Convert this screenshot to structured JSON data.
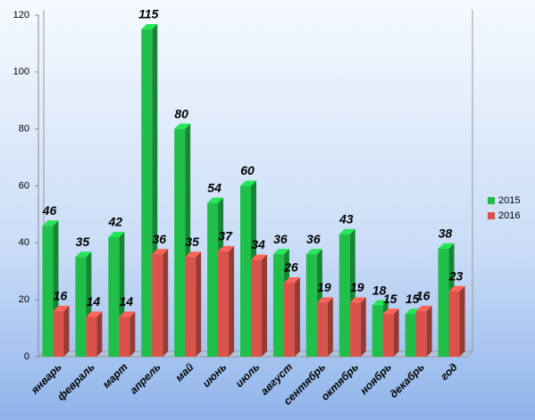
{
  "chart_data": {
    "type": "bar",
    "categories": [
      "январь",
      "февраль",
      "март",
      "апрель",
      "май",
      "июнь",
      "июль",
      "август",
      "сентябрь",
      "октябрь",
      "ноябрь",
      "декабрь",
      "год"
    ],
    "series": [
      {
        "name": "2015",
        "color": "#1fbf4a",
        "values": [
          46,
          35,
          42,
          115,
          80,
          54,
          60,
          36,
          36,
          43,
          18,
          15,
          38
        ]
      },
      {
        "name": "2016",
        "color": "#d9534a",
        "values": [
          16,
          14,
          14,
          36,
          35,
          37,
          34,
          26,
          19,
          19,
          15,
          16,
          23
        ]
      }
    ],
    "ylim": [
      0,
      120
    ],
    "yticks": [
      0,
      20,
      40,
      60,
      80,
      100,
      120
    ],
    "grid": false,
    "legend": "right"
  }
}
